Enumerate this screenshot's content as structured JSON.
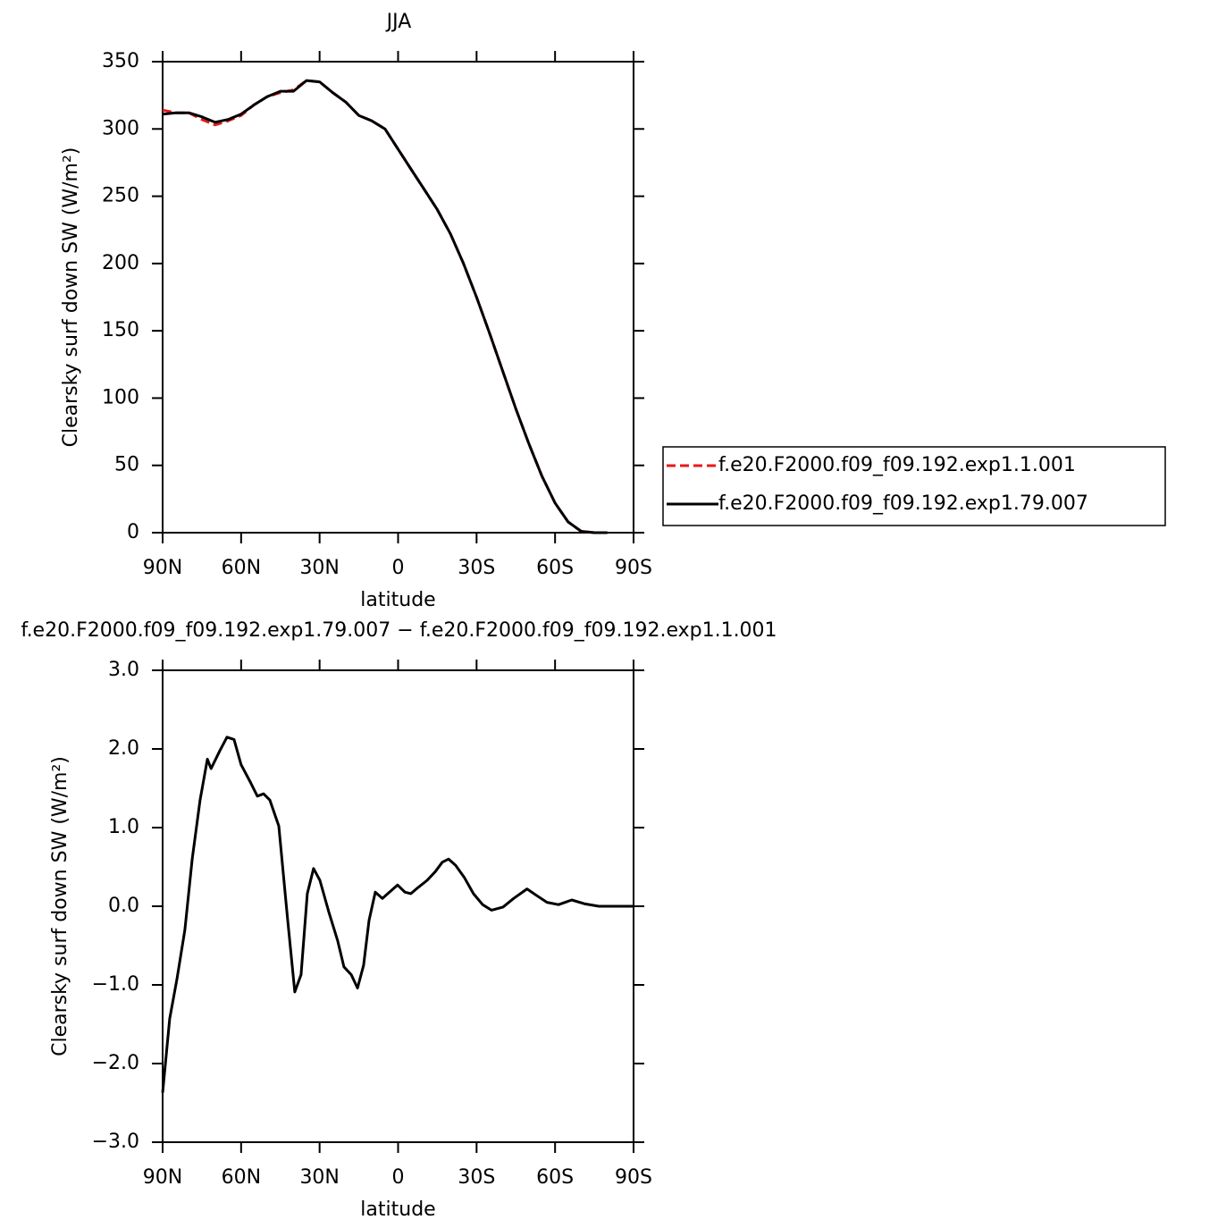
{
  "chart_data": [
    {
      "type": "line",
      "title": "JJA",
      "xlabel": "latitude",
      "ylabel": "Clearsky surf down SW (W/m²)",
      "x": [
        90,
        85,
        80,
        75,
        70,
        65,
        60,
        55,
        50,
        45,
        40,
        35,
        30,
        25,
        20,
        15,
        10,
        5,
        0,
        -5,
        -10,
        -15,
        -20,
        -25,
        -30,
        -35,
        -40,
        -45,
        -50,
        -55,
        -60,
        -65,
        -70,
        -75,
        -80
      ],
      "series": [
        {
          "name": "f.e20.F2000.f09_f09.192.exp1.1.001",
          "color": "#e41a1c",
          "linestyle": "dashed",
          "values": [
            314,
            312,
            312,
            307,
            303,
            306,
            310,
            318,
            324,
            327,
            329,
            336,
            335,
            327,
            320,
            310,
            306,
            300,
            285,
            270,
            255,
            240,
            222,
            200,
            175,
            148,
            120,
            92,
            66,
            42,
            22,
            8,
            1,
            0,
            0
          ]
        },
        {
          "name": "f.e20.F2000.f09_f09.192.exp1.79.007",
          "color": "#000000",
          "linestyle": "solid",
          "values": [
            311,
            312,
            312,
            309,
            305,
            307,
            311,
            318,
            324,
            328,
            328,
            336,
            335,
            327,
            320,
            310,
            306,
            300,
            285,
            270,
            255,
            240,
            222,
            200,
            175,
            148,
            120,
            92,
            66,
            42,
            22,
            8,
            1,
            0,
            0
          ]
        }
      ],
      "xlim": [
        90,
        -90
      ],
      "xticks": [
        {
          "value": 90,
          "label": "90N"
        },
        {
          "value": 60,
          "label": "60N"
        },
        {
          "value": 30,
          "label": "30N"
        },
        0,
        {
          "value": -30,
          "label": "30S"
        },
        {
          "value": -60,
          "label": "60S"
        },
        {
          "value": -90,
          "label": "90S"
        }
      ],
      "ylim": [
        0,
        350
      ],
      "yticks": [
        0,
        50,
        100,
        150,
        200,
        250,
        300,
        350
      ],
      "legend": "outside-right"
    },
    {
      "type": "line",
      "title": "f.e20.F2000.f09_f09.192.exp1.79.007 − f.e20.F2000.f09_f09.192.exp1.1.001",
      "xlabel": "latitude",
      "ylabel": "Clearsky surf down SW (W/m²)",
      "x": [
        90,
        87.3,
        84.5,
        81.5,
        78.7,
        75.7,
        72.9,
        71.5,
        68.1,
        65.4,
        62.7,
        60,
        56.5,
        53.8,
        51.4,
        49,
        45.6,
        42.2,
        39.5,
        37.1,
        34.7,
        32.3,
        29.9,
        26.5,
        23.1,
        20.7,
        17.9,
        15.5,
        13.2,
        11.1,
        8.7,
        6,
        3.3,
        0.2,
        -2.6,
        -4.9,
        -7.7,
        -11.1,
        -14.2,
        -16.9,
        -19.3,
        -22,
        -25.4,
        -28.8,
        -32.3,
        -35.7,
        -40.1,
        -44.2,
        -49.3,
        -52.8,
        -56.9,
        -61.3,
        -66.4,
        -71.5,
        -76.7,
        -90
      ],
      "series": [
        {
          "color": "#000000",
          "linestyle": "solid",
          "values": [
            -2.37,
            -1.43,
            -0.92,
            -0.3,
            0.6,
            1.35,
            1.87,
            1.75,
            1.98,
            2.15,
            2.12,
            1.8,
            1.58,
            1.4,
            1.43,
            1.35,
            1.02,
            -0.17,
            -1.09,
            -0.87,
            0.16,
            0.48,
            0.33,
            -0.07,
            -0.44,
            -0.77,
            -0.87,
            -1.04,
            -0.75,
            -0.18,
            0.18,
            0.1,
            0.18,
            0.27,
            0.18,
            0.16,
            0.24,
            0.33,
            0.44,
            0.56,
            0.6,
            0.52,
            0.36,
            0.16,
            0.02,
            -0.05,
            -0.01,
            0.1,
            0.22,
            0.14,
            0.05,
            0.02,
            0.08,
            0.03,
            0,
            0
          ]
        }
      ],
      "xlim": [
        90,
        -90
      ],
      "xticks": [
        {
          "value": 90,
          "label": "90N"
        },
        {
          "value": 60,
          "label": "60N"
        },
        {
          "value": 30,
          "label": "30N"
        },
        0,
        {
          "value": -30,
          "label": "30S"
        },
        {
          "value": -60,
          "label": "60S"
        },
        {
          "value": -90,
          "label": "90S"
        }
      ],
      "ylim": [
        -3,
        3
      ],
      "yticks": [
        {
          "value": -3,
          "label": "−3.0"
        },
        {
          "value": -2,
          "label": "−2.0"
        },
        {
          "value": -1,
          "label": "−1.0"
        },
        {
          "value": 0,
          "label": "0.0"
        },
        {
          "value": 1,
          "label": "1.0"
        },
        {
          "value": 2,
          "label": "2.0"
        },
        {
          "value": 3,
          "label": "3.0"
        }
      ]
    }
  ]
}
